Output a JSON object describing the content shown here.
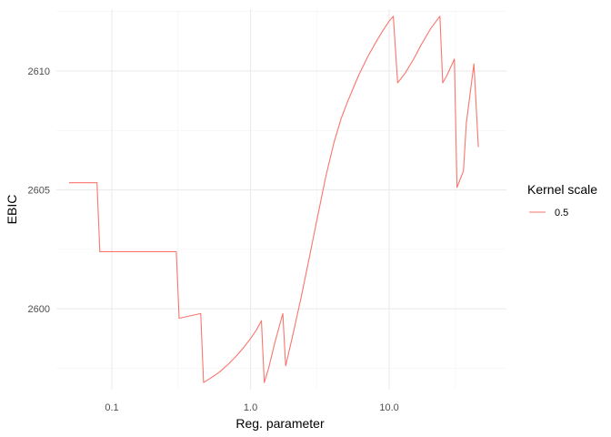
{
  "chart_data": {
    "type": "line",
    "xlabel": "Reg. parameter",
    "ylabel": "EBIC",
    "x_scale": "log10",
    "xlim": [
      0.0398,
      70
    ],
    "ylim": [
      2596.6,
      2612.6
    ],
    "x_ticks": [
      {
        "value": 0.1,
        "label": "0.1"
      },
      {
        "value": 1,
        "label": "1.0"
      },
      {
        "value": 10,
        "label": "10.0"
      }
    ],
    "x_minor_ticks": [
      0.3,
      3,
      30
    ],
    "y_ticks": [
      {
        "value": 2600,
        "label": "2600"
      },
      {
        "value": 2605,
        "label": "2605"
      },
      {
        "value": 2610,
        "label": "2610"
      }
    ],
    "y_minor_ticks": [
      2597.5,
      2602.5,
      2607.5,
      2612.5
    ],
    "grid": true,
    "legend": {
      "title": "Kernel scale",
      "position": "right"
    },
    "series": [
      {
        "name": "0.5",
        "color": "#F8766D",
        "x": [
          0.0492,
          0.0781,
          0.0819,
          0.2915,
          0.3055,
          0.4372,
          0.4582,
          0.52,
          0.6,
          0.7,
          0.8,
          0.9,
          1.0,
          1.1,
          1.198,
          1.256,
          1.35,
          1.5,
          1.709,
          1.791,
          2.0,
          2.3,
          2.6,
          3.0,
          3.5,
          4.0,
          4.5,
          5.0,
          6.0,
          7.0,
          8.0,
          9.0,
          10.0,
          10.7,
          11.5,
          13.0,
          15.0,
          17.0,
          20.0,
          23.19,
          24.31,
          26.0,
          29.5,
          30.8,
          34.3,
          35.95,
          40.8,
          43.9
        ],
        "values": [
          2605.3,
          2605.3,
          2602.4,
          2602.4,
          2599.6,
          2599.8,
          2596.9,
          2597.1,
          2597.35,
          2597.7,
          2598.05,
          2598.4,
          2598.75,
          2599.1,
          2599.5,
          2596.9,
          2597.5,
          2598.6,
          2599.8,
          2597.6,
          2598.8,
          2600.4,
          2601.9,
          2603.7,
          2605.6,
          2607.0,
          2608.0,
          2608.7,
          2609.8,
          2610.6,
          2611.2,
          2611.7,
          2612.1,
          2612.3,
          2609.5,
          2609.9,
          2610.5,
          2611.1,
          2611.8,
          2612.3,
          2609.5,
          2609.8,
          2610.5,
          2605.1,
          2605.8,
          2607.8,
          2610.3,
          2606.8
        ]
      }
    ]
  }
}
